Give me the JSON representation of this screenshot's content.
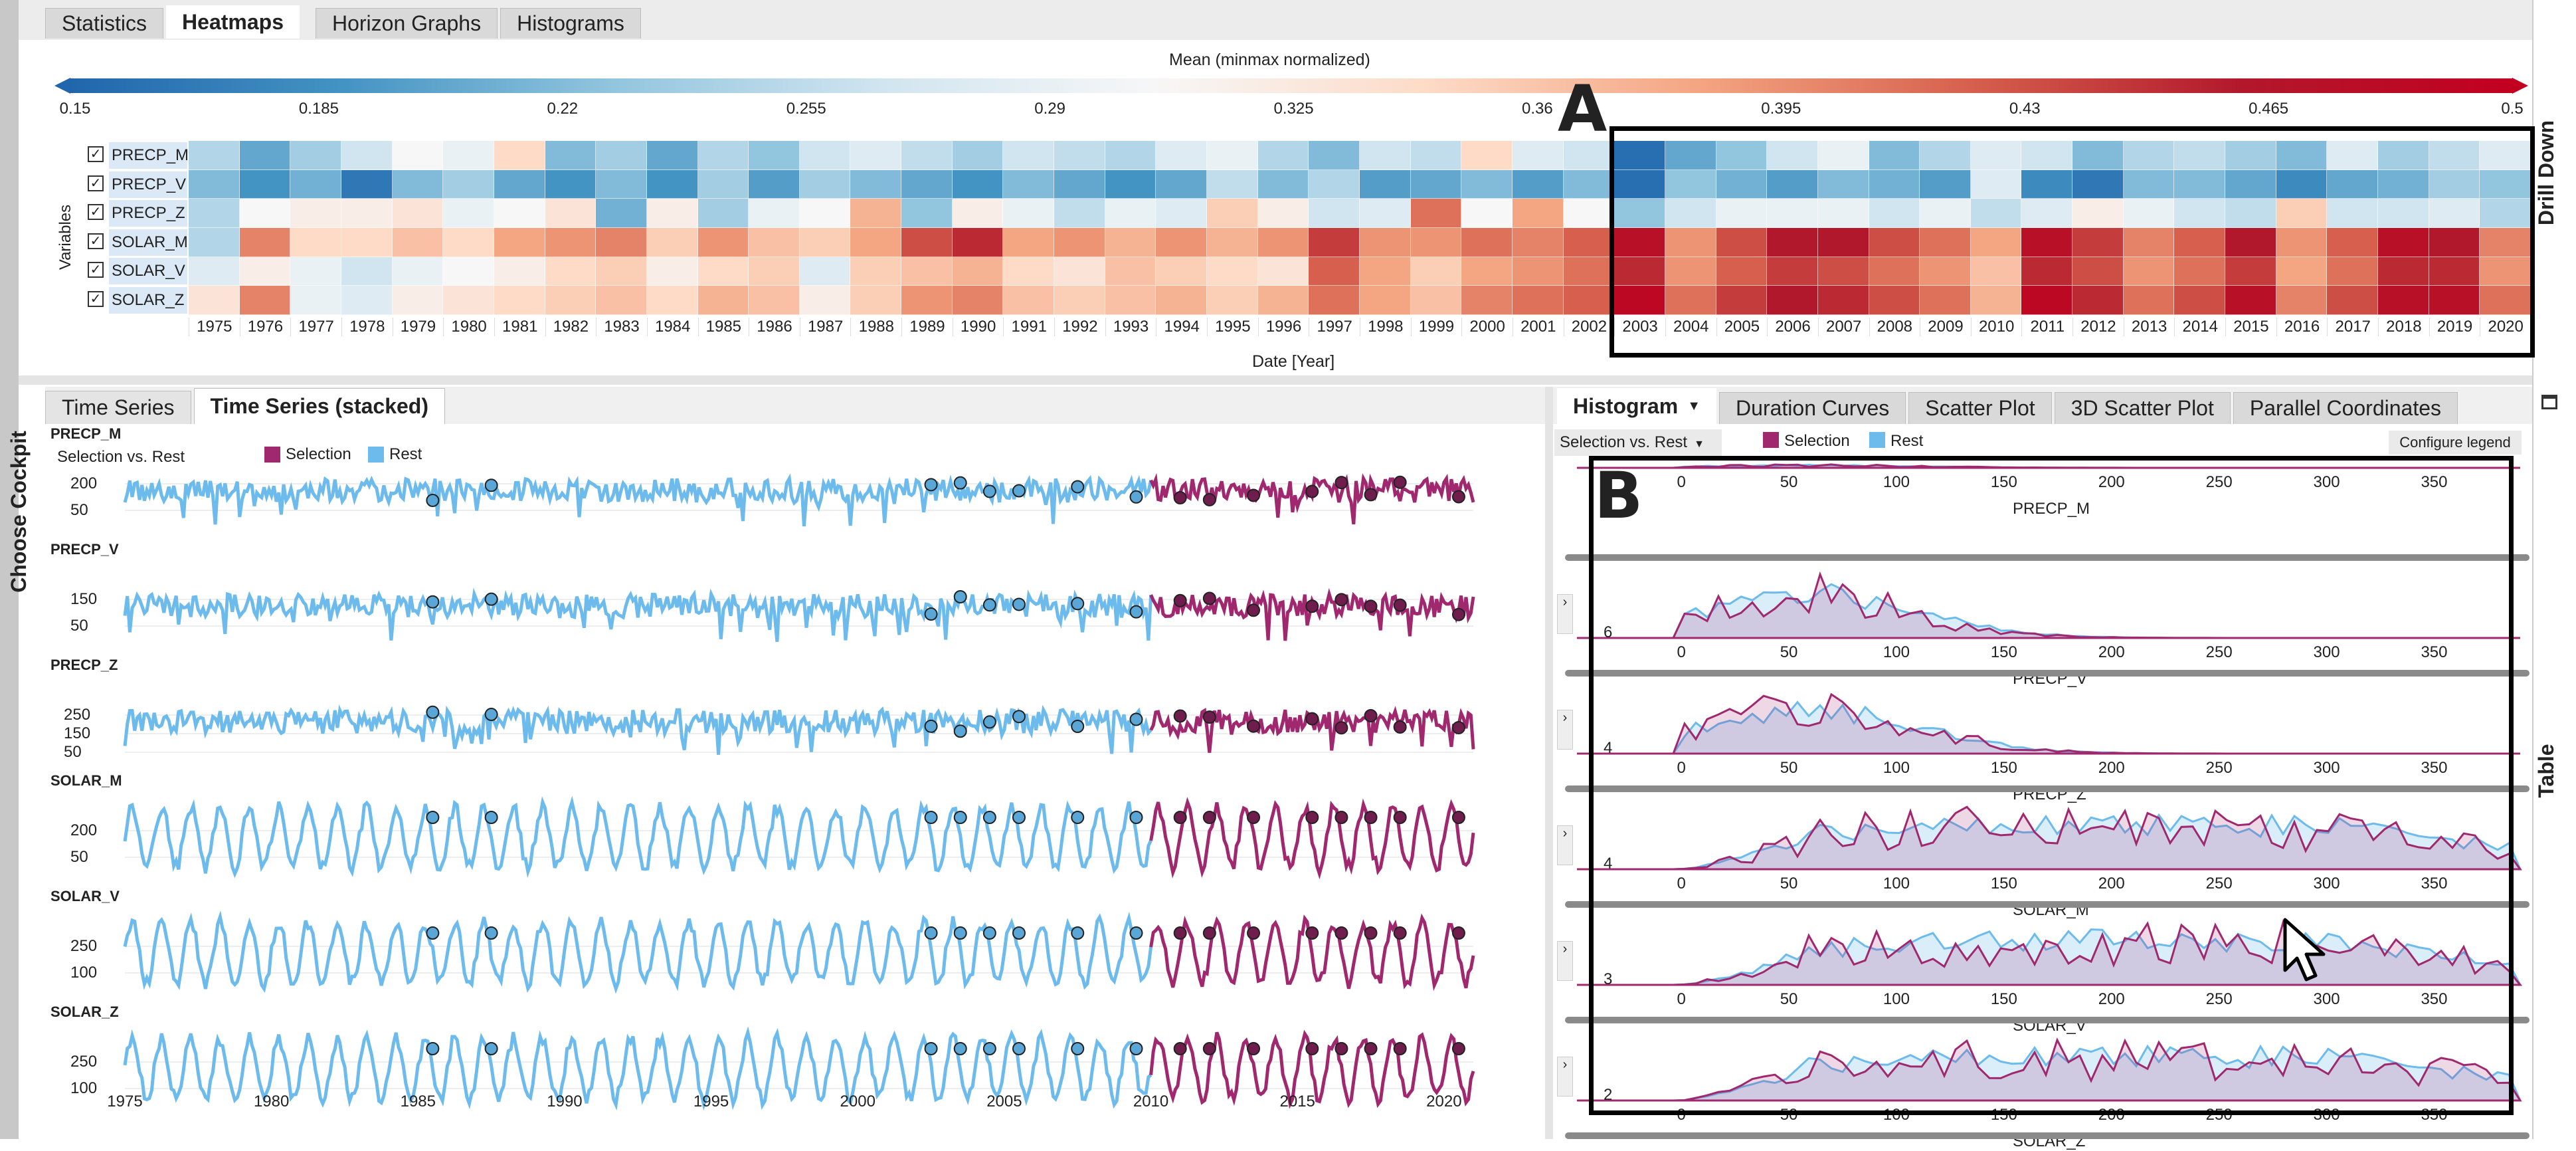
{
  "top_tabs": [
    "Statistics",
    "Heatmaps",
    "Horizon Graphs",
    "Histograms"
  ],
  "heatmap": {
    "title": "Mean (minmax normalized)",
    "scale_ticks": [
      "0.15",
      "0.185",
      "0.22",
      "0.255",
      "0.29",
      "0.325",
      "0.36",
      "0.395",
      "0.43",
      "0.465",
      "0.5"
    ],
    "y_title": "Variables",
    "x_title": "Date [Year]",
    "variables": [
      "PRECP_M",
      "PRECP_V",
      "PRECP_Z",
      "SOLAR_M",
      "SOLAR_V",
      "SOLAR_Z"
    ],
    "check_mark": "✓",
    "years": [
      "1975",
      "1976",
      "1977",
      "1978",
      "1979",
      "1980",
      "1981",
      "1982",
      "1983",
      "1984",
      "1985",
      "1986",
      "1987",
      "1988",
      "1989",
      "1990",
      "1991",
      "1992",
      "1993",
      "1994",
      "1995",
      "1996",
      "1997",
      "1998",
      "1999",
      "2000",
      "2001",
      "2002",
      "2003",
      "2004",
      "2005",
      "2006",
      "2007",
      "2008",
      "2009",
      "2010",
      "2011",
      "2012",
      "2013",
      "2014",
      "2015",
      "2016",
      "2017",
      "2018",
      "2019",
      "2020"
    ],
    "values": [
      [
        0.27,
        0.22,
        0.26,
        0.29,
        0.32,
        0.31,
        0.35,
        0.24,
        0.26,
        0.22,
        0.27,
        0.25,
        0.29,
        0.3,
        0.28,
        0.26,
        0.29,
        0.28,
        0.27,
        0.3,
        0.31,
        0.27,
        0.24,
        0.29,
        0.28,
        0.35,
        0.3,
        0.29,
        0.16,
        0.22,
        0.25,
        0.29,
        0.31,
        0.24,
        0.27,
        0.3,
        0.29,
        0.24,
        0.27,
        0.28,
        0.26,
        0.24,
        0.3,
        0.26,
        0.28,
        0.3
      ],
      [
        0.24,
        0.2,
        0.23,
        0.17,
        0.24,
        0.26,
        0.22,
        0.2,
        0.24,
        0.2,
        0.26,
        0.21,
        0.26,
        0.24,
        0.22,
        0.2,
        0.24,
        0.22,
        0.2,
        0.22,
        0.28,
        0.24,
        0.27,
        0.21,
        0.22,
        0.24,
        0.21,
        0.24,
        0.16,
        0.25,
        0.23,
        0.21,
        0.24,
        0.23,
        0.21,
        0.3,
        0.19,
        0.17,
        0.24,
        0.24,
        0.22,
        0.19,
        0.22,
        0.23,
        0.26,
        0.25
      ],
      [
        0.27,
        0.32,
        0.33,
        0.33,
        0.34,
        0.31,
        0.32,
        0.34,
        0.23,
        0.33,
        0.26,
        0.31,
        0.32,
        0.38,
        0.25,
        0.33,
        0.31,
        0.28,
        0.31,
        0.3,
        0.36,
        0.33,
        0.29,
        0.3,
        0.42,
        0.32,
        0.39,
        0.32,
        0.25,
        0.29,
        0.31,
        0.31,
        0.31,
        0.29,
        0.31,
        0.28,
        0.3,
        0.33,
        0.31,
        0.29,
        0.28,
        0.36,
        0.29,
        0.29,
        0.3,
        0.27
      ],
      [
        0.27,
        0.41,
        0.35,
        0.35,
        0.37,
        0.35,
        0.39,
        0.4,
        0.41,
        0.36,
        0.4,
        0.37,
        0.36,
        0.39,
        0.44,
        0.46,
        0.39,
        0.4,
        0.38,
        0.4,
        0.38,
        0.4,
        0.45,
        0.4,
        0.4,
        0.42,
        0.41,
        0.43,
        0.48,
        0.4,
        0.44,
        0.47,
        0.47,
        0.44,
        0.42,
        0.39,
        0.48,
        0.45,
        0.41,
        0.43,
        0.47,
        0.4,
        0.43,
        0.48,
        0.47,
        0.41
      ],
      [
        0.3,
        0.33,
        0.31,
        0.29,
        0.31,
        0.32,
        0.33,
        0.35,
        0.36,
        0.33,
        0.35,
        0.36,
        0.3,
        0.36,
        0.37,
        0.38,
        0.35,
        0.34,
        0.37,
        0.36,
        0.35,
        0.34,
        0.43,
        0.39,
        0.36,
        0.39,
        0.4,
        0.42,
        0.46,
        0.4,
        0.43,
        0.45,
        0.44,
        0.42,
        0.4,
        0.37,
        0.46,
        0.44,
        0.4,
        0.42,
        0.45,
        0.39,
        0.42,
        0.46,
        0.46,
        0.4
      ],
      [
        0.34,
        0.41,
        0.31,
        0.3,
        0.33,
        0.34,
        0.35,
        0.36,
        0.37,
        0.35,
        0.38,
        0.37,
        0.33,
        0.36,
        0.4,
        0.41,
        0.37,
        0.36,
        0.37,
        0.38,
        0.36,
        0.38,
        0.42,
        0.39,
        0.37,
        0.41,
        0.42,
        0.43,
        0.49,
        0.42,
        0.45,
        0.47,
        0.46,
        0.44,
        0.42,
        0.38,
        0.49,
        0.46,
        0.42,
        0.44,
        0.48,
        0.41,
        0.44,
        0.48,
        0.48,
        0.42
      ]
    ]
  },
  "labels": {
    "A": "A",
    "B": "B"
  },
  "drill_down": "Drill Down",
  "table_label": "Table",
  "choose_cockpit": "Choose Cockpit",
  "ts_tabs": [
    "Time Series",
    "Time Series (stacked)"
  ],
  "ts": {
    "legend_title": "Selection vs. Rest",
    "selection": "Selection",
    "rest": "Rest",
    "colors": {
      "selection": "#a0286e",
      "rest": "#6cbbec"
    },
    "x_ticks": [
      "1975",
      "1980",
      "1985",
      "1990",
      "1995",
      "2000",
      "2005",
      "2010",
      "2015",
      "2020"
    ],
    "x_range": [
      1975,
      2021
    ],
    "selection_start": 2010,
    "rows": [
      {
        "name": "PRECP_M",
        "yticks": [
          "200",
          "50"
        ]
      },
      {
        "name": "PRECP_V",
        "yticks": [
          "150",
          "50"
        ]
      },
      {
        "name": "PRECP_Z",
        "yticks": [
          "250",
          "150",
          "50"
        ]
      },
      {
        "name": "SOLAR_M",
        "yticks": [
          "200",
          "50"
        ]
      },
      {
        "name": "SOLAR_V",
        "yticks": [
          "250",
          "100"
        ]
      },
      {
        "name": "SOLAR_Z",
        "yticks": [
          "250",
          "100"
        ]
      }
    ]
  },
  "hist_tabs": [
    "Histogram",
    "Duration Curves",
    "Scatter Plot",
    "3D Scatter Plot",
    "Parallel Coordinates"
  ],
  "hist": {
    "dropdown": "Selection vs. Rest",
    "selection": "Selection",
    "rest": "Rest",
    "configure": "Configure legend",
    "xticks": [
      "0",
      "50",
      "100",
      "150",
      "200",
      "250",
      "300",
      "350"
    ],
    "rows": [
      {
        "name": "PRECP_M",
        "ymax": ""
      },
      {
        "name": "PRECP_V",
        "ymax": "6"
      },
      {
        "name": "PRECP_Z",
        "ymax": "4"
      },
      {
        "name": "SOLAR_M",
        "ymax": "4"
      },
      {
        "name": "SOLAR_V",
        "ymax": "3"
      },
      {
        "name": "SOLAR_Z",
        "ymax": "2"
      }
    ]
  }
}
